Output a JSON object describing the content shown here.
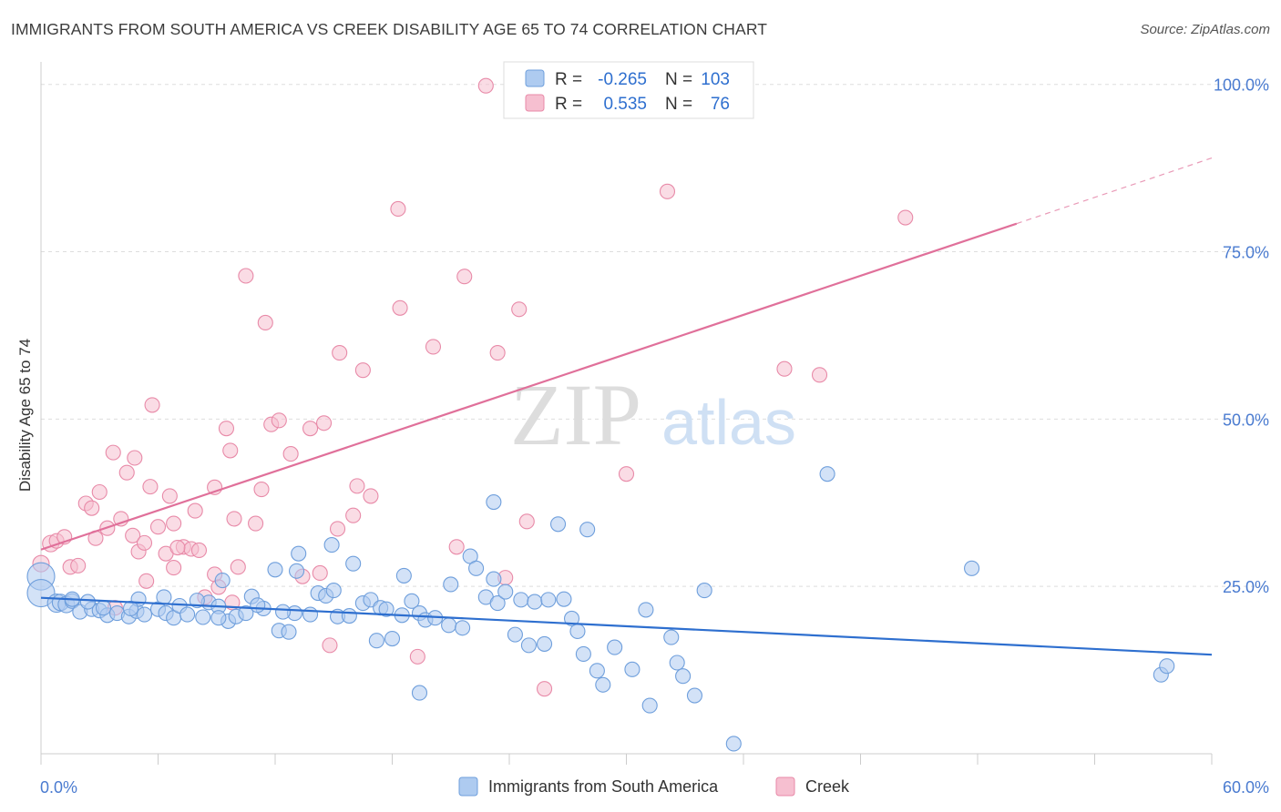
{
  "title": "IMMIGRANTS FROM SOUTH AMERICA VS CREEK DISABILITY AGE 65 TO 74 CORRELATION CHART",
  "source": "Source: ZipAtlas.com",
  "watermark": {
    "zip": "ZIP",
    "atlas": "atlas"
  },
  "colors": {
    "blue_fill": "#aecbf0",
    "blue_stroke": "#6f9fdc",
    "blue_line": "#2e6fcf",
    "pink_fill": "#f6bfd0",
    "pink_stroke": "#e88aa8",
    "pink_line": "#e0709a",
    "axis_text": "#4a7bd0",
    "grid": "#dddddd"
  },
  "legend": {
    "rows": [
      {
        "r_label": "R =",
        "r_value": "-0.265",
        "n_label": "N =",
        "n_value": "103"
      },
      {
        "r_label": "R =",
        "r_value": "0.535",
        "n_label": "N =",
        "n_value": "76"
      }
    ]
  },
  "bottom_legend": [
    "Immigrants from South America",
    "Creek"
  ],
  "chart_data": {
    "type": "scatter",
    "title": "IMMIGRANTS FROM SOUTH AMERICA VS CREEK DISABILITY AGE 65 TO 74 CORRELATION CHART",
    "xlabel": "",
    "ylabel": "Disability Age 65 to 74",
    "xlim": [
      0,
      60
    ],
    "ylim": [
      0,
      102
    ],
    "x_tick_labels": [
      "0.0%",
      "60.0%"
    ],
    "y_ticks": [
      25,
      50,
      75,
      100
    ],
    "y_tick_labels": [
      "25.0%",
      "50.0%",
      "75.0%",
      "100.0%"
    ],
    "grid": "horizontal dashed",
    "legend_position": "top-center",
    "series": [
      {
        "name": "Immigrants from South America",
        "r": -0.265,
        "n": 103,
        "trend": {
          "x": [
            0,
            60
          ],
          "y": [
            23.3,
            14.8
          ]
        },
        "points": [
          [
            0.0,
            26.5,
            14
          ],
          [
            0.0,
            24.0,
            14
          ],
          [
            0.8,
            22.5,
            9
          ],
          [
            1.0,
            22.6,
            8
          ],
          [
            1.3,
            22.3,
            8
          ],
          [
            1.6,
            22.8,
            7
          ],
          [
            2.0,
            21.2,
            7
          ],
          [
            2.6,
            21.6,
            7
          ],
          [
            3.0,
            21.4,
            7
          ],
          [
            3.4,
            20.7,
            7
          ],
          [
            3.9,
            21.0,
            7
          ],
          [
            4.5,
            20.5,
            7
          ],
          [
            4.9,
            21.3,
            7
          ],
          [
            5.0,
            23.1,
            7
          ],
          [
            5.3,
            20.8,
            7
          ],
          [
            6.0,
            21.6,
            7
          ],
          [
            6.4,
            21.0,
            7
          ],
          [
            6.8,
            20.3,
            7
          ],
          [
            7.1,
            22.1,
            7
          ],
          [
            7.5,
            20.8,
            7
          ],
          [
            8.3,
            20.4,
            7
          ],
          [
            8.6,
            22.6,
            7
          ],
          [
            9.1,
            22.0,
            7
          ],
          [
            9.6,
            19.8,
            7
          ],
          [
            10.0,
            20.5,
            7
          ],
          [
            10.5,
            21.0,
            7
          ],
          [
            10.8,
            23.5,
            7
          ],
          [
            11.4,
            21.7,
            7
          ],
          [
            12.2,
            18.4,
            7
          ],
          [
            12.7,
            18.2,
            7
          ],
          [
            13.0,
            21.0,
            7
          ],
          [
            13.8,
            20.8,
            7
          ],
          [
            14.2,
            24.0,
            7
          ],
          [
            14.6,
            23.6,
            7
          ],
          [
            15.2,
            20.5,
            7
          ],
          [
            15.8,
            20.6,
            7
          ],
          [
            16.5,
            22.5,
            7
          ],
          [
            16.9,
            23.0,
            7
          ],
          [
            17.4,
            21.8,
            7
          ],
          [
            17.7,
            21.6,
            7
          ],
          [
            18.0,
            17.2,
            7
          ],
          [
            18.6,
            26.6,
            7
          ],
          [
            19.0,
            22.8,
            7
          ],
          [
            19.4,
            21.0,
            7
          ],
          [
            19.7,
            20.0,
            7
          ],
          [
            20.2,
            20.3,
            7
          ],
          [
            20.9,
            19.2,
            7
          ],
          [
            21.0,
            25.3,
            7
          ],
          [
            21.6,
            18.8,
            7
          ],
          [
            22.0,
            29.5,
            7
          ],
          [
            22.3,
            27.7,
            7
          ],
          [
            22.8,
            23.4,
            7
          ],
          [
            23.2,
            26.1,
            7
          ],
          [
            23.4,
            22.5,
            7
          ],
          [
            23.8,
            24.2,
            7
          ],
          [
            24.3,
            17.8,
            7
          ],
          [
            24.6,
            23.0,
            7
          ],
          [
            25.0,
            16.2,
            7
          ],
          [
            25.3,
            22.7,
            7
          ],
          [
            25.8,
            16.4,
            7
          ],
          [
            26.5,
            34.3,
            7
          ],
          [
            27.2,
            20.2,
            7
          ],
          [
            27.5,
            18.3,
            7
          ],
          [
            27.8,
            14.9,
            7
          ],
          [
            28.5,
            12.4,
            7
          ],
          [
            28.8,
            10.3,
            7
          ],
          [
            29.4,
            15.9,
            7
          ],
          [
            30.3,
            12.6,
            7
          ],
          [
            31.0,
            21.5,
            7
          ],
          [
            31.2,
            7.2,
            7
          ],
          [
            32.3,
            17.4,
            7
          ],
          [
            32.6,
            13.6,
            7
          ],
          [
            32.9,
            11.6,
            7
          ],
          [
            33.5,
            8.7,
            7
          ],
          [
            34.0,
            24.4,
            7
          ],
          [
            35.5,
            1.5,
            7
          ],
          [
            40.3,
            41.8,
            7
          ],
          [
            47.7,
            27.7,
            7
          ],
          [
            57.4,
            11.8,
            7
          ],
          [
            57.7,
            13.1,
            7
          ],
          [
            23.2,
            37.6,
            7
          ],
          [
            13.1,
            27.3,
            7
          ],
          [
            14.9,
            31.2,
            7
          ],
          [
            12.0,
            27.5,
            7
          ],
          [
            13.2,
            29.9,
            7
          ],
          [
            16.0,
            28.4,
            7
          ],
          [
            8.0,
            22.9,
            7
          ],
          [
            6.3,
            23.4,
            7
          ],
          [
            9.3,
            25.9,
            7
          ],
          [
            11.1,
            22.2,
            7
          ],
          [
            12.4,
            21.2,
            7
          ],
          [
            15.0,
            24.4,
            7
          ],
          [
            17.2,
            16.9,
            7
          ],
          [
            18.5,
            20.7,
            7
          ],
          [
            19.4,
            9.1,
            7
          ],
          [
            26.0,
            23.0,
            7
          ],
          [
            26.8,
            23.1,
            7
          ],
          [
            28.0,
            33.5,
            7
          ],
          [
            9.1,
            20.3,
            7
          ],
          [
            4.6,
            21.7,
            7
          ],
          [
            3.2,
            21.8,
            7
          ],
          [
            2.4,
            22.7,
            7
          ],
          [
            1.6,
            23.1,
            7
          ]
        ]
      },
      {
        "name": "Creek",
        "r": 0.535,
        "n": 76,
        "trend": {
          "x": [
            0,
            50
          ],
          "y": [
            30.5,
            79.2
          ]
        },
        "trend_dashed": {
          "x": [
            50,
            60
          ],
          "y": [
            79.2,
            89.0
          ]
        },
        "points": [
          [
            0.0,
            28.4,
            8
          ],
          [
            0.5,
            31.4,
            8
          ],
          [
            0.8,
            31.8,
            7
          ],
          [
            1.2,
            32.4,
            7
          ],
          [
            1.5,
            27.9,
            7
          ],
          [
            1.9,
            28.1,
            7
          ],
          [
            2.3,
            37.4,
            7
          ],
          [
            2.6,
            36.7,
            7
          ],
          [
            2.8,
            32.2,
            7
          ],
          [
            3.0,
            39.1,
            7
          ],
          [
            3.4,
            33.7,
            7
          ],
          [
            3.7,
            45.0,
            7
          ],
          [
            4.1,
            35.1,
            7
          ],
          [
            4.4,
            42.0,
            7
          ],
          [
            4.7,
            32.6,
            7
          ],
          [
            4.8,
            44.2,
            7
          ],
          [
            5.0,
            30.2,
            7
          ],
          [
            5.3,
            31.5,
            7
          ],
          [
            5.6,
            39.9,
            7
          ],
          [
            5.4,
            25.8,
            7
          ],
          [
            5.7,
            52.1,
            7
          ],
          [
            6.0,
            33.9,
            7
          ],
          [
            6.4,
            29.9,
            7
          ],
          [
            6.6,
            38.5,
            7
          ],
          [
            6.8,
            27.8,
            7
          ],
          [
            6.8,
            34.4,
            7
          ],
          [
            7.3,
            30.9,
            7
          ],
          [
            7.7,
            30.6,
            7
          ],
          [
            7.9,
            36.3,
            7
          ],
          [
            8.1,
            30.4,
            7
          ],
          [
            8.4,
            23.4,
            7
          ],
          [
            8.9,
            39.8,
            7
          ],
          [
            8.9,
            26.8,
            7
          ],
          [
            9.1,
            24.9,
            7
          ],
          [
            9.5,
            48.6,
            7
          ],
          [
            9.7,
            45.3,
            7
          ],
          [
            9.9,
            35.1,
            7
          ],
          [
            10.1,
            27.9,
            7
          ],
          [
            10.5,
            71.4,
            7
          ],
          [
            11.0,
            34.4,
            7
          ],
          [
            11.3,
            39.5,
            7
          ],
          [
            11.5,
            64.4,
            7
          ],
          [
            11.8,
            49.2,
            7
          ],
          [
            12.2,
            49.8,
            7
          ],
          [
            12.8,
            44.8,
            7
          ],
          [
            13.4,
            26.5,
            7
          ],
          [
            13.8,
            48.6,
            7
          ],
          [
            14.5,
            49.4,
            7
          ],
          [
            14.8,
            16.2,
            7
          ],
          [
            15.2,
            33.6,
            7
          ],
          [
            15.3,
            59.9,
            7
          ],
          [
            16.0,
            35.6,
            7
          ],
          [
            16.2,
            40.0,
            7
          ],
          [
            16.5,
            57.3,
            7
          ],
          [
            16.9,
            38.5,
            7
          ],
          [
            18.3,
            81.4,
            7
          ],
          [
            18.4,
            66.6,
            7
          ],
          [
            19.3,
            14.5,
            7
          ],
          [
            20.1,
            60.8,
            7
          ],
          [
            21.3,
            30.9,
            7
          ],
          [
            21.7,
            71.3,
            7
          ],
          [
            22.8,
            99.8,
            7
          ],
          [
            23.4,
            59.9,
            7
          ],
          [
            23.8,
            26.3,
            7
          ],
          [
            24.5,
            66.4,
            7
          ],
          [
            24.9,
            34.7,
            7
          ],
          [
            25.8,
            9.7,
            7
          ],
          [
            30.0,
            41.8,
            7
          ],
          [
            32.1,
            84.0,
            7
          ],
          [
            38.1,
            57.5,
            7
          ],
          [
            39.9,
            56.6,
            7
          ],
          [
            44.3,
            80.1,
            7
          ],
          [
            3.8,
            21.8,
            7
          ],
          [
            7.0,
            30.8,
            7
          ],
          [
            14.3,
            27.0,
            7
          ],
          [
            9.8,
            22.6,
            7
          ]
        ]
      }
    ]
  }
}
